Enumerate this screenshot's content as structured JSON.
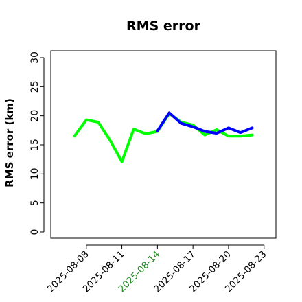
{
  "chart_data": {
    "type": "line",
    "title": "RMS error",
    "xlabel": "",
    "ylabel": "RMS error (km)",
    "ylim": [
      0,
      30
    ],
    "yticks": [
      0,
      5,
      10,
      15,
      20,
      25,
      30
    ],
    "xticks": [
      {
        "label": "2025-08-08",
        "date": "2025-08-08",
        "color": "#000000"
      },
      {
        "label": "2025-08-11",
        "date": "2025-08-11",
        "color": "#000000"
      },
      {
        "label": "2025-08-14",
        "date": "2025-08-14",
        "color": "#228B22"
      },
      {
        "label": "2025-08-17",
        "date": "2025-08-17",
        "color": "#000000"
      },
      {
        "label": "2025-08-20",
        "date": "2025-08-20",
        "color": "#000000"
      },
      {
        "label": "2025-08-23",
        "date": "2025-08-23",
        "color": "#000000"
      }
    ],
    "xlim": [
      "2025-08-05",
      "2025-08-24"
    ],
    "grid": false,
    "legend": "none",
    "series": [
      {
        "color": "#00FF00",
        "x": [
          "2025-08-07",
          "2025-08-08",
          "2025-08-09",
          "2025-08-10",
          "2025-08-11",
          "2025-08-12",
          "2025-08-13",
          "2025-08-14",
          "2025-08-15",
          "2025-08-16",
          "2025-08-17",
          "2025-08-18",
          "2025-08-19",
          "2025-08-20",
          "2025-08-21",
          "2025-08-22"
        ],
        "values": [
          16.5,
          19.3,
          18.9,
          15.8,
          12.1,
          17.7,
          16.9,
          17.3,
          20.4,
          18.9,
          18.4,
          16.7,
          17.6,
          16.5,
          16.5,
          16.7
        ]
      },
      {
        "color": "#0000FF",
        "x": [
          "2025-08-14",
          "2025-08-15",
          "2025-08-16",
          "2025-08-17",
          "2025-08-18",
          "2025-08-19",
          "2025-08-20",
          "2025-08-21",
          "2025-08-22"
        ],
        "values": [
          17.4,
          20.5,
          18.7,
          18.1,
          17.3,
          17.0,
          17.9,
          17.1,
          17.9
        ]
      }
    ]
  }
}
